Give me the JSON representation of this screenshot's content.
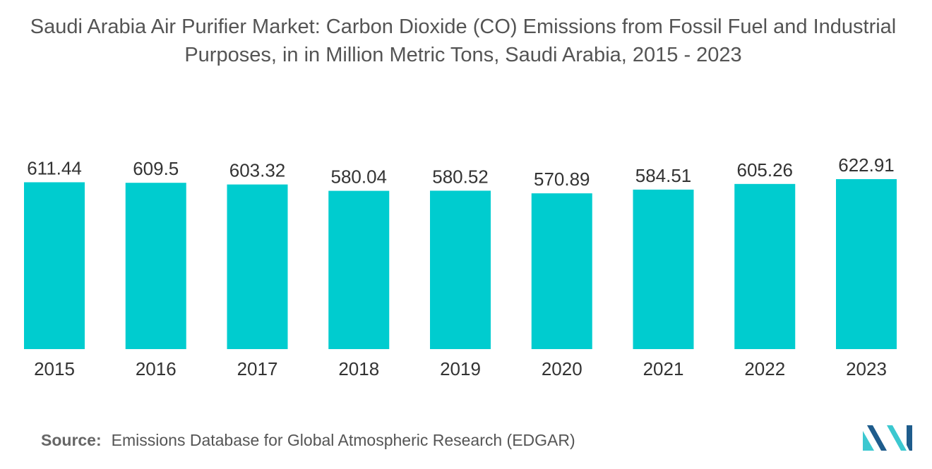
{
  "colors": {
    "bar": "#00CCCF",
    "title": "#545454",
    "text": "#333333",
    "logo_dark": "#1E5C8C",
    "logo_light": "#3CC8D0"
  },
  "chart_data": {
    "type": "bar",
    "title": "Saudi Arabia Air Purifier Market: Carbon Dioxide (CO) Emissions from Fossil Fuel and Industrial Purposes, in in Million Metric Tons, Saudi Arabia, 2015 - 2023",
    "categories": [
      "2015",
      "2016",
      "2017",
      "2018",
      "2019",
      "2020",
      "2021",
      "2022",
      "2023"
    ],
    "values": [
      611.44,
      609.5,
      603.32,
      580.04,
      580.52,
      570.89,
      584.51,
      605.26,
      622.91
    ],
    "value_labels": [
      "611.44",
      "609.5",
      "603.32",
      "580.04",
      "580.52",
      "570.89",
      "584.51",
      "605.26",
      "622.91"
    ],
    "xlabel": "",
    "ylabel": "",
    "ylim": [
      0,
      622.91
    ],
    "grid": false,
    "legend": "none"
  },
  "source": {
    "label": "Source:",
    "text": "Emissions Database for Global Atmospheric Research (EDGAR)"
  },
  "logo": {
    "icon": "mordor-intelligence-logo-icon"
  }
}
